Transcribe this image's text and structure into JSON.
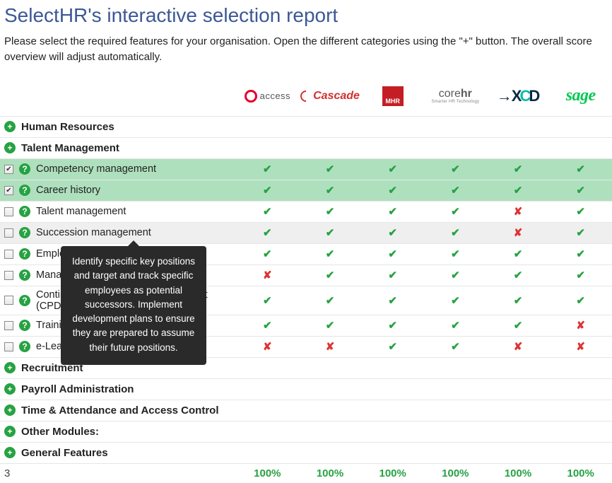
{
  "title": "SelectHR's interactive selection report",
  "intro": "Please select the required features for your organisation. Open the different categories using the \"+\" button. The overall score overview will adjust automatically.",
  "vendors": [
    "access",
    "Cascade",
    "MHR",
    "corehr",
    "XCD",
    "sage"
  ],
  "vendor_sub": [
    "",
    "",
    "",
    "Smarter HR Technology",
    "",
    ""
  ],
  "categories_top": [
    {
      "label": "Human Resources"
    },
    {
      "label": "Talent Management"
    }
  ],
  "features": [
    {
      "label": "Competency management",
      "checked": true,
      "selected": true,
      "stripe": false,
      "marks": [
        "✔",
        "✔",
        "✔",
        "✔",
        "✔",
        "✔"
      ]
    },
    {
      "label": "Career history",
      "checked": true,
      "selected": true,
      "stripe": false,
      "marks": [
        "✔",
        "✔",
        "✔",
        "✔",
        "✔",
        "✔"
      ]
    },
    {
      "label": "Talent management",
      "checked": false,
      "selected": false,
      "stripe": false,
      "marks": [
        "✔",
        "✔",
        "✔",
        "✔",
        "✘",
        "✔"
      ]
    },
    {
      "label": "Succession management",
      "checked": false,
      "selected": false,
      "stripe": true,
      "marks": [
        "✔",
        "✔",
        "✔",
        "✔",
        "✘",
        "✔"
      ]
    },
    {
      "label": "Employee",
      "checked": false,
      "selected": false,
      "stripe": false,
      "marks": [
        "✔",
        "✔",
        "✔",
        "✔",
        "✔",
        "✔"
      ]
    },
    {
      "label": "Manage",
      "checked": false,
      "selected": false,
      "stripe": false,
      "marks": [
        "✘",
        "✔",
        "✔",
        "✔",
        "✔",
        "✔"
      ]
    },
    {
      "label": "Continuous professional development (CPD)",
      "checked": false,
      "selected": false,
      "stripe": false,
      "marks": [
        "✔",
        "✔",
        "✔",
        "✔",
        "✔",
        "✔"
      ]
    },
    {
      "label": "Training",
      "checked": false,
      "selected": false,
      "stripe": false,
      "marks": [
        "✔",
        "✔",
        "✔",
        "✔",
        "✔",
        "✘"
      ]
    },
    {
      "label": "e-Learning",
      "checked": false,
      "selected": false,
      "stripe": false,
      "marks": [
        "✘",
        "✘",
        "✔",
        "✔",
        "✘",
        "✘"
      ]
    }
  ],
  "categories_bottom": [
    {
      "label": "Recruitment"
    },
    {
      "label": "Payroll Administration"
    },
    {
      "label": "Time & Attendance and Access Control"
    },
    {
      "label": "Other Modules:"
    },
    {
      "label": "General Features"
    }
  ],
  "footer_count": "3",
  "footer_scores": [
    "100%",
    "100%",
    "100%",
    "100%",
    "100%",
    "100%"
  ],
  "tooltip": "Identify specific key positions and target and track specific employees as potential successors. Implement development plans to ensure they are prepared to assume their future positions."
}
